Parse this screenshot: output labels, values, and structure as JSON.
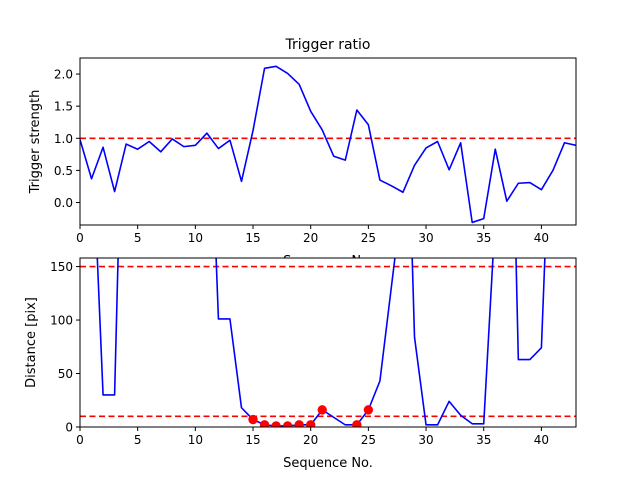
{
  "chart_data": [
    {
      "type": "line",
      "title": "Trigger ratio",
      "xlabel": "Sequence No.",
      "ylabel": "Trigger strength",
      "xlim": [
        0,
        43
      ],
      "ylim": [
        -0.35,
        2.25
      ],
      "xticks": [
        0,
        5,
        10,
        15,
        20,
        25,
        30,
        35,
        40
      ],
      "yticks": [
        0.0,
        0.5,
        1.0,
        1.5,
        2.0
      ],
      "ytick_labels": [
        "0.0",
        "0.5",
        "1.0",
        "1.5",
        "2.0"
      ],
      "grid": false,
      "series": [
        {
          "color": "#0000ff",
          "x": [
            0,
            1,
            2,
            3,
            4,
            5,
            6,
            7,
            8,
            9,
            10,
            11,
            12,
            13,
            14,
            15,
            16,
            17,
            18,
            19,
            20,
            21,
            22,
            23,
            24,
            25,
            26,
            27,
            28,
            29,
            30,
            31,
            32,
            33,
            34,
            35,
            36,
            37,
            38,
            39,
            40,
            41,
            42,
            43
          ],
          "y": [
            0.98,
            0.37,
            0.86,
            0.17,
            0.91,
            0.83,
            0.95,
            0.79,
            0.99,
            0.87,
            0.89,
            1.08,
            0.84,
            0.97,
            0.33,
            1.12,
            2.09,
            2.12,
            2.01,
            1.84,
            1.42,
            1.13,
            0.72,
            0.66,
            1.44,
            1.21,
            0.35,
            0.26,
            0.16,
            0.58,
            0.85,
            0.95,
            0.51,
            0.93,
            -0.31,
            -0.25,
            0.83,
            0.02,
            0.3,
            0.31,
            0.2,
            0.5,
            0.93,
            0.89
          ]
        }
      ],
      "hlines": [
        {
          "y": 1.0,
          "color": "#ff0000",
          "style": "dashed"
        }
      ]
    },
    {
      "type": "line",
      "title": "",
      "xlabel": "Sequence No.",
      "ylabel": "Distance [pix]",
      "xlim": [
        0,
        43
      ],
      "ylim": [
        0,
        158
      ],
      "xticks": [
        0,
        5,
        10,
        15,
        20,
        25,
        30,
        35,
        40
      ],
      "yticks": [
        0,
        50,
        100,
        150
      ],
      "ytick_labels": [
        "0",
        "50",
        "100",
        "150"
      ],
      "grid": false,
      "series": [
        {
          "color": "#0000ff",
          "segments": [
            {
              "x": [
                1.5,
                2,
                3,
                3.3
              ],
              "y": [
                158,
                30,
                30,
                158
              ]
            },
            {
              "x": [
                11.8,
                12,
                13,
                14,
                15,
                16,
                17,
                18,
                19,
                20,
                21,
                22,
                23,
                24,
                25,
                26,
                27.3
              ],
              "y": [
                158,
                101,
                101,
                18,
                7,
                2,
                1,
                1,
                2,
                2,
                16,
                9,
                2,
                2,
                16,
                43,
                158
              ]
            },
            {
              "x": [
                28.8,
                29,
                30,
                31,
                32,
                33,
                34,
                35,
                35.8
              ],
              "y": [
                158,
                84,
                2,
                2,
                24,
                11,
                3,
                3,
                158
              ]
            },
            {
              "x": [
                37.8,
                38,
                39,
                40,
                40.3
              ],
              "y": [
                158,
                63,
                63,
                74,
                158
              ]
            }
          ]
        },
        {
          "color": "#ff0000",
          "markers": true,
          "x": [
            15,
            16,
            17,
            18,
            19,
            20,
            21,
            24,
            25
          ],
          "y": [
            7,
            2,
            1,
            1,
            2,
            2,
            16,
            2,
            16
          ]
        }
      ],
      "hlines": [
        {
          "y": 150,
          "color": "#ff0000",
          "style": "dashed"
        },
        {
          "y": 10,
          "color": "#ff0000",
          "style": "dashed"
        }
      ]
    }
  ]
}
